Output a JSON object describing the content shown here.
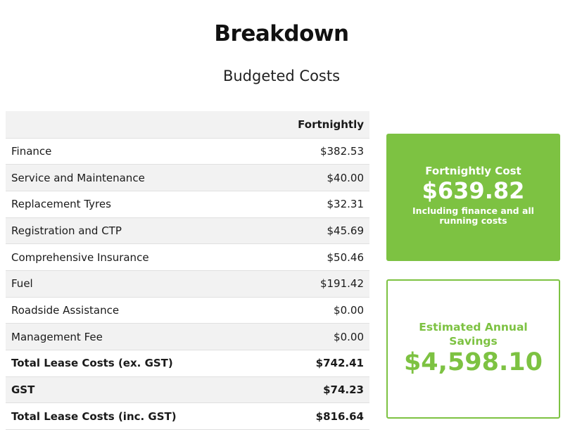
{
  "page": {
    "heading": "Breakdown",
    "subheading": "Budgeted Costs"
  },
  "table": {
    "column_header": "Fortnightly",
    "rows": [
      {
        "label": "Finance",
        "value": "$382.53",
        "bold": false
      },
      {
        "label": "Service and Maintenance",
        "value": "$40.00",
        "bold": false
      },
      {
        "label": "Replacement Tyres",
        "value": "$32.31",
        "bold": false
      },
      {
        "label": "Registration and CTP",
        "value": "$45.69",
        "bold": false
      },
      {
        "label": "Comprehensive Insurance",
        "value": "$50.46",
        "bold": false
      },
      {
        "label": "Fuel",
        "value": "$191.42",
        "bold": false
      },
      {
        "label": "Roadside Assistance",
        "value": "$0.00",
        "bold": false
      },
      {
        "label": "Management Fee",
        "value": "$0.00",
        "bold": false
      },
      {
        "label": "Total Lease Costs (ex. GST)",
        "value": "$742.41",
        "bold": true
      },
      {
        "label": "GST",
        "value": "$74.23",
        "bold": true
      },
      {
        "label": "Total Lease Costs (inc. GST)",
        "value": "$816.64",
        "bold": true
      }
    ]
  },
  "fortnightly_card": {
    "label": "Fortnightly Cost",
    "amount": "$639.82",
    "note": "Including finance and all running costs"
  },
  "savings_card": {
    "label": "Estimated Annual Savings",
    "amount": "$4,598.10"
  },
  "colors": {
    "accent_green": "#7dc242",
    "row_shade": "#f2f2f2"
  }
}
